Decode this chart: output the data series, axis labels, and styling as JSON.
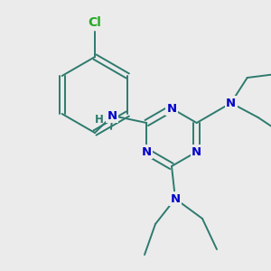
{
  "bg_color": "#ebebeb",
  "bond_color": "#2d7a6e",
  "N_color": "#0000cc",
  "Cl_color": "#22aa22",
  "lw": 1.4,
  "fs": 9.5,
  "xlim": [
    0,
    300
  ],
  "ylim": [
    0,
    300
  ]
}
